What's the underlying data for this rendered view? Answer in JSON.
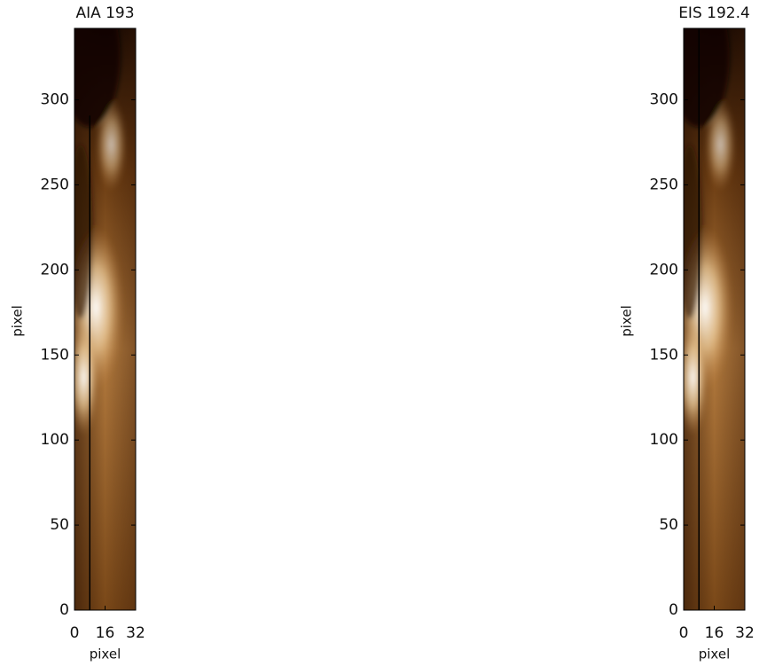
{
  "chart_data": [
    {
      "type": "image",
      "title": "AIA 193",
      "xlabel": "pixel",
      "ylabel": "pixel",
      "xlim": [
        0,
        32
      ],
      "ylim": [
        0,
        342
      ],
      "xticks": [
        0,
        16,
        32
      ],
      "yticks": [
        0,
        50,
        100,
        150,
        200,
        250,
        300
      ]
    },
    {
      "type": "image",
      "title": "EIS 192.4",
      "xlabel": "pixel",
      "ylabel": "pixel",
      "xlim": [
        0,
        32
      ],
      "ylim": [
        0,
        342
      ],
      "xticks": [
        0,
        16,
        32
      ],
      "yticks": [
        0,
        50,
        100,
        150,
        200,
        250,
        300
      ]
    }
  ]
}
